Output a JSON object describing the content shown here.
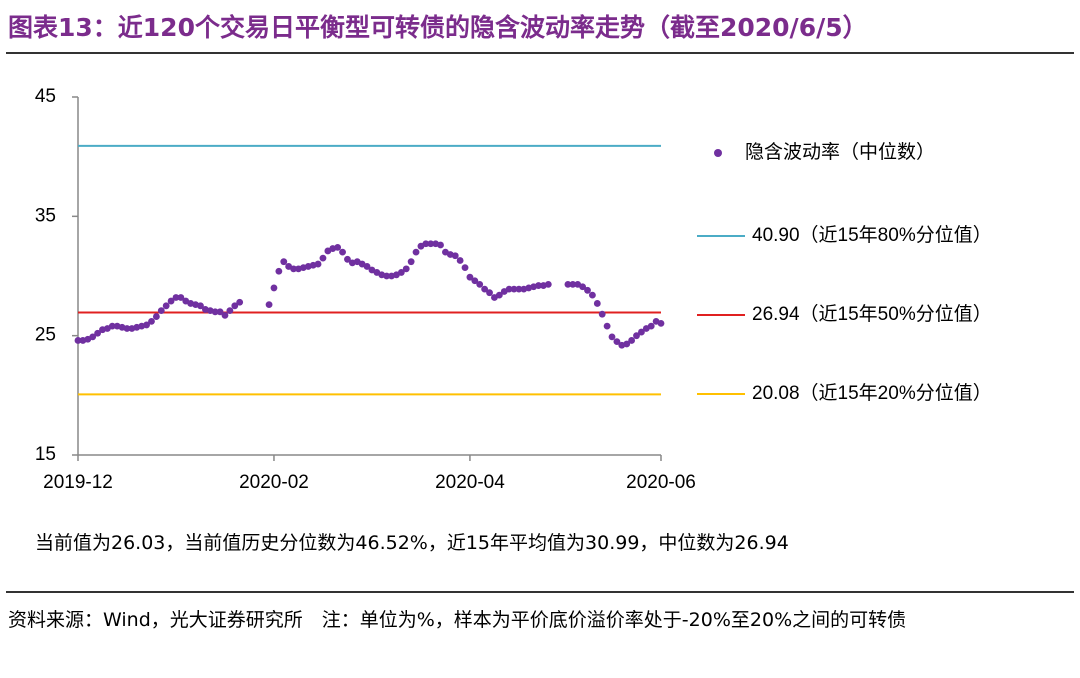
{
  "chart_data": {
    "type": "scatter",
    "title": "图表13：近120个交易日平衡型可转债的隐含波动率走势（截至2020/6/5）",
    "note": "当前值为26.03，当前值历史分位数为46.52%，近15年平均值为30.99，中位数为26.94",
    "source": "资料来源：Wind，光大证券研究所　注：单位为%，样本为平价底价溢价率处于-20%至20%之间的可转债",
    "categories": [
      "2019-12",
      null,
      null,
      null,
      null,
      null,
      null,
      null,
      null,
      null,
      null,
      null,
      null,
      null,
      null,
      null,
      null,
      null,
      null,
      null,
      null,
      null,
      null,
      null,
      null,
      null,
      null,
      null,
      null,
      null,
      null,
      null,
      null,
      null,
      null,
      null,
      null,
      null,
      null,
      null,
      "2020-02",
      null,
      null,
      null,
      null,
      null,
      null,
      null,
      null,
      null,
      null,
      null,
      null,
      null,
      null,
      null,
      null,
      null,
      null,
      null,
      null,
      null,
      null,
      null,
      null,
      null,
      null,
      null,
      null,
      null,
      null,
      null,
      null,
      null,
      null,
      null,
      null,
      null,
      null,
      null,
      "2020-04",
      null,
      null,
      null,
      null,
      null,
      null,
      null,
      null,
      null,
      null,
      null,
      null,
      null,
      null,
      null,
      null,
      null,
      null,
      null,
      null,
      null,
      null,
      null,
      null,
      null,
      null,
      null,
      null,
      null,
      null,
      null,
      null,
      null,
      null,
      null,
      null,
      null,
      null,
      "2020-06"
    ],
    "series": [
      {
        "name": "隐含波动率（中位数）",
        "color": "#7030a0",
        "values": [
          24.6,
          24.6,
          24.7,
          24.9,
          25.2,
          25.5,
          25.6,
          25.8,
          25.8,
          25.7,
          25.6,
          25.6,
          25.7,
          25.8,
          25.9,
          26.2,
          26.6,
          27.1,
          27.5,
          27.9,
          28.2,
          28.2,
          27.9,
          27.7,
          27.6,
          27.5,
          27.2,
          27.1,
          27.0,
          27.0,
          26.7,
          27.1,
          27.5,
          27.8,
          null,
          null,
          null,
          null,
          null,
          27.6,
          29.0,
          30.4,
          31.2,
          30.8,
          30.6,
          30.6,
          30.7,
          30.8,
          30.9,
          31.0,
          31.5,
          32.1,
          32.3,
          32.4,
          32.0,
          31.4,
          31.1,
          31.2,
          31.0,
          30.8,
          30.5,
          30.3,
          30.1,
          30.0,
          30.0,
          30.1,
          30.3,
          30.6,
          31.2,
          32.0,
          32.5,
          32.7,
          32.7,
          32.7,
          32.6,
          32.0,
          31.8,
          31.7,
          31.3,
          30.7,
          29.9,
          29.6,
          29.3,
          28.9,
          28.6,
          28.2,
          28.4,
          28.7,
          28.9,
          28.9,
          28.9,
          28.9,
          29.0,
          29.1,
          29.2,
          29.2,
          29.3,
          null,
          null,
          null,
          29.3,
          29.3,
          29.3,
          29.1,
          28.8,
          28.4,
          27.7,
          26.8,
          25.8,
          24.9,
          24.5,
          24.2,
          24.3,
          24.6,
          25.0,
          25.3,
          25.6,
          25.8,
          26.2,
          26.03
        ]
      }
    ],
    "reference_lines": [
      {
        "value": 40.9,
        "label": "40.90（近15年80%分位值）",
        "color": "#4bacc6"
      },
      {
        "value": 26.94,
        "label": "26.94（近15年50%分位值）",
        "color": "#e02020"
      },
      {
        "value": 20.08,
        "label": "20.08（近15年20%分位值）",
        "color": "#ffc000"
      }
    ],
    "ylim": [
      15,
      45
    ],
    "yticks": [
      15,
      25,
      35,
      45
    ],
    "grid": false
  }
}
